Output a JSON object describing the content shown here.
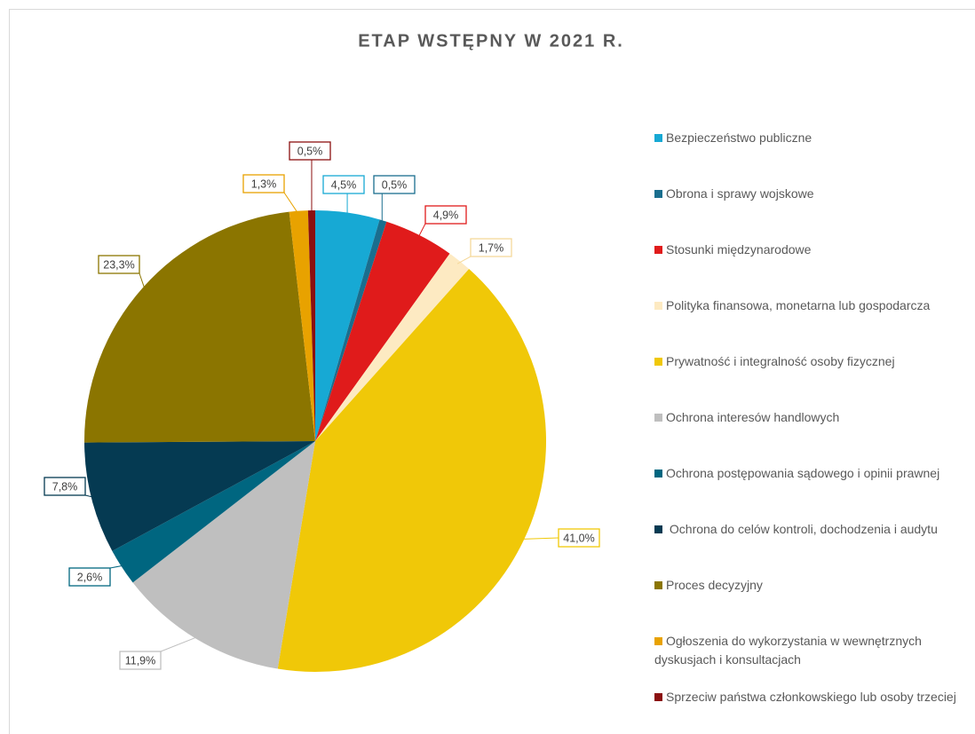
{
  "chart_data": {
    "type": "pie",
    "title": "ETAP WSTĘPNY W 2021 R.",
    "categories": [
      "Bezpieczeństwo publiczne",
      "Obrona i sprawy wojskowe",
      "Stosunki międzynarodowe",
      "Polityka finansowa, monetarna lub gospodarcza",
      "Prywatność i integralność osoby fizycznej",
      "Ochrona interesów handlowych",
      "Ochrona postępowania sądowego i opinii prawnej",
      " Ochrona do celów kontroli, dochodzenia i audytu",
      "Proces decyzyjny",
      "Ogłoszenia do wykorzystania w wewnętrznych dyskusjach i konsultacjach",
      "Sprzeciw państwa członkowskiego lub osoby trzeciej"
    ],
    "values": [
      4.5,
      0.5,
      4.9,
      1.7,
      41.0,
      11.9,
      2.6,
      7.8,
      23.3,
      1.3,
      0.5
    ],
    "value_labels": [
      "4,5%",
      "0,5%",
      "4,9%",
      "1,7%",
      "41,0%",
      "11,9%",
      "2,6%",
      "7,8%",
      "23,3%",
      "1,3%",
      "0,5%"
    ],
    "colors": [
      "#17a9d4",
      "#1a6e8e",
      "#e01b1b",
      "#fdeac2",
      "#f0c808",
      "#bfbfbf",
      "#006680",
      "#053a52",
      "#8b7500",
      "#e8a200",
      "#8b1010"
    ],
    "legend": "right"
  }
}
